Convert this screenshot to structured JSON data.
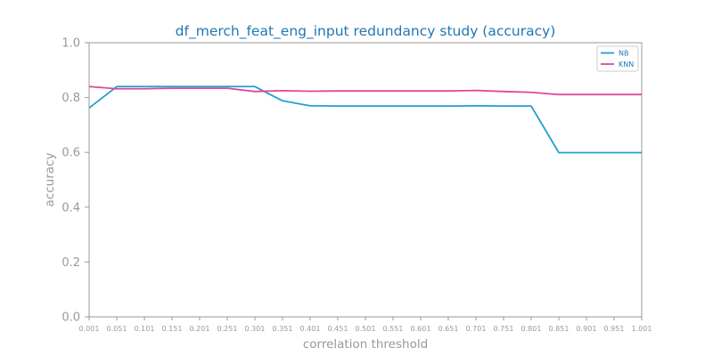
{
  "chart_data": {
    "type": "line",
    "title": "df_merch_feat_eng_input redundancy study (accuracy)",
    "xlabel": "correlation threshold",
    "ylabel": "accuracy",
    "ylim": [
      0.0,
      1.0
    ],
    "yticks": [
      "0.0",
      "0.2",
      "0.4",
      "0.6",
      "0.8",
      "1.0"
    ],
    "x": [
      "0.001",
      "0.051",
      "0.101",
      "0.151",
      "0.201",
      "0.251",
      "0.301",
      "0.351",
      "0.401",
      "0.451",
      "0.501",
      "0.551",
      "0.601",
      "0.651",
      "0.701",
      "0.751",
      "0.801",
      "0.851",
      "0.901",
      "0.951",
      "1.001"
    ],
    "grid": false,
    "legend_position": "top-right",
    "series": [
      {
        "name": "NB",
        "color": "#1f9fd3",
        "values": [
          0.762,
          0.84,
          0.84,
          0.84,
          0.84,
          0.84,
          0.84,
          0.788,
          0.77,
          0.769,
          0.769,
          0.769,
          0.769,
          0.769,
          0.77,
          0.769,
          0.769,
          0.599,
          0.599,
          0.599,
          0.599
        ]
      },
      {
        "name": "KNN",
        "color": "#e0459a",
        "values": [
          0.84,
          0.832,
          0.832,
          0.834,
          0.834,
          0.834,
          0.822,
          0.825,
          0.823,
          0.824,
          0.824,
          0.824,
          0.824,
          0.824,
          0.826,
          0.822,
          0.819,
          0.811,
          0.811,
          0.811,
          0.811
        ]
      }
    ],
    "title_color": "#1f77b4",
    "axis_color": "#999999"
  }
}
